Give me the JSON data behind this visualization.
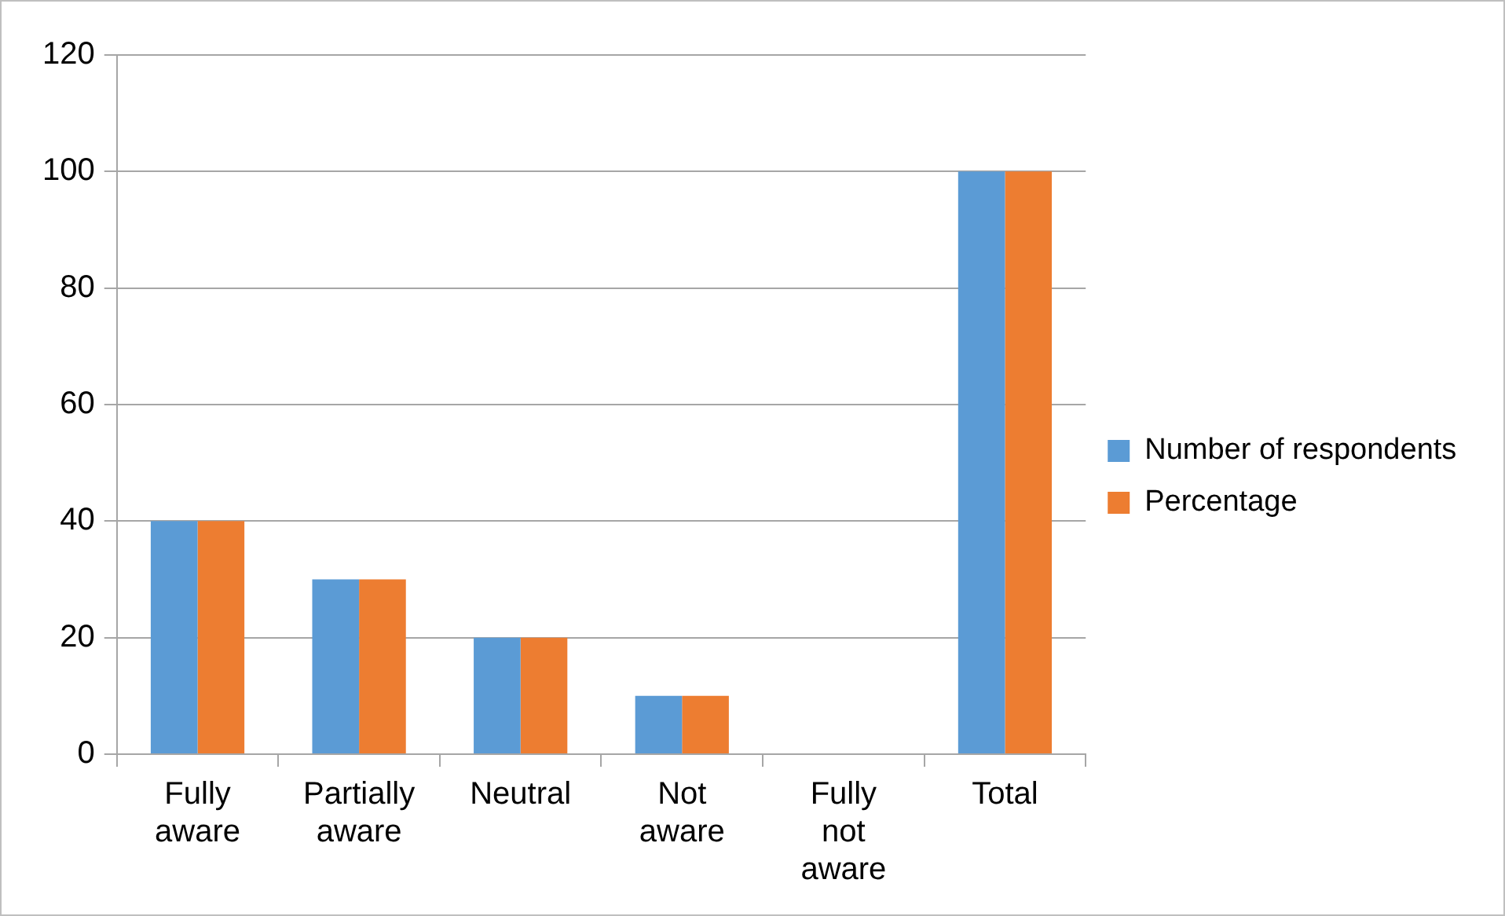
{
  "chart_data": {
    "type": "bar",
    "categories": [
      "Fully aware",
      "Partially aware",
      "Neutral",
      "Not aware",
      "Fully not aware",
      "Total"
    ],
    "series": [
      {
        "name": "Number of respondents",
        "color": "#5b9bd5",
        "values": [
          40,
          30,
          20,
          10,
          0,
          100
        ]
      },
      {
        "name": "Percentage",
        "color": "#ed7d31",
        "values": [
          40,
          30,
          20,
          10,
          0,
          100
        ]
      }
    ],
    "ylim": [
      0,
      120
    ],
    "yticks": [
      0,
      20,
      40,
      60,
      80,
      100,
      120
    ],
    "grid": "y",
    "legend": "right"
  }
}
